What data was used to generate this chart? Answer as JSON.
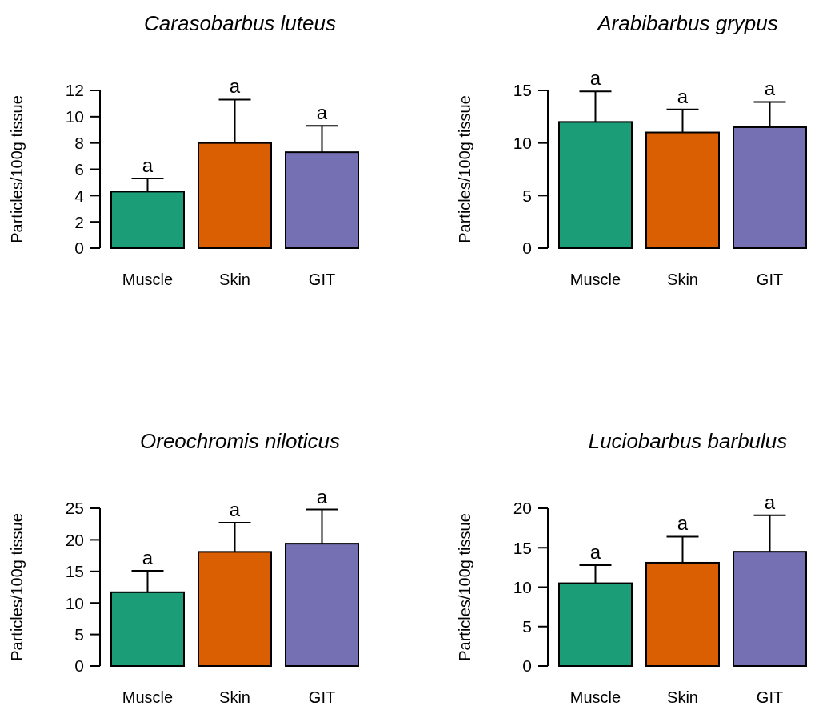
{
  "chart_data": [
    {
      "type": "bar",
      "title": "Carasobarbus luteus",
      "ylabel": "Particles/100g tissue",
      "categories": [
        "Muscle",
        "Skin",
        "GIT"
      ],
      "values": [
        4.3,
        8.0,
        7.3
      ],
      "colors": [
        "#1b9e77",
        "#d95f02",
        "#7570b3"
      ],
      "errors": [
        [
          4.3,
          5.3
        ],
        [
          8.0,
          11.3
        ],
        [
          7.3,
          9.3
        ]
      ],
      "ylim": [
        0,
        12
      ],
      "yticks": [
        0,
        2,
        4,
        6,
        8,
        10,
        12
      ],
      "annotations": [
        {
          "text": "a",
          "x": "Muscle",
          "y": 5.3
        },
        {
          "text": "a",
          "x": "Skin",
          "y": 11.3
        },
        {
          "text": "a",
          "x": "GIT",
          "y": 9.3
        }
      ]
    },
    {
      "type": "bar",
      "title": "Arabibarbus grypus",
      "ylabel": "Particles/100g tissue",
      "categories": [
        "Muscle",
        "Skin",
        "GIT"
      ],
      "values": [
        12.0,
        11.0,
        11.5
      ],
      "colors": [
        "#1b9e77",
        "#d95f02",
        "#7570b3"
      ],
      "errors": [
        [
          12.0,
          14.9
        ],
        [
          11.0,
          13.2
        ],
        [
          11.5,
          13.9
        ]
      ],
      "ylim": [
        0,
        15
      ],
      "yticks": [
        0,
        5,
        10,
        15
      ],
      "annotations": [
        {
          "text": "a",
          "x": "Muscle",
          "y": 14.9
        },
        {
          "text": "a",
          "x": "Skin",
          "y": 13.2
        },
        {
          "text": "a",
          "x": "GIT",
          "y": 13.9
        }
      ]
    },
    {
      "type": "bar",
      "title": "Oreochromis niloticus",
      "ylabel": "Particles/100g tissue",
      "categories": [
        "Muscle",
        "Skin",
        "GIT"
      ],
      "values": [
        11.7,
        18.1,
        19.4
      ],
      "colors": [
        "#1b9e77",
        "#d95f02",
        "#7570b3"
      ],
      "errors": [
        [
          11.7,
          15.1
        ],
        [
          18.1,
          22.7
        ],
        [
          19.4,
          24.8
        ]
      ],
      "ylim": [
        0,
        25
      ],
      "yticks": [
        0,
        5,
        10,
        15,
        20,
        25
      ],
      "annotations": [
        {
          "text": "a",
          "x": "Muscle",
          "y": 15.1
        },
        {
          "text": "a",
          "x": "Skin",
          "y": 22.7
        },
        {
          "text": "a",
          "x": "GIT",
          "y": 24.8
        }
      ]
    },
    {
      "type": "bar",
      "title": "Luciobarbus barbulus",
      "ylabel": "Particles/100g tissue",
      "categories": [
        "Muscle",
        "Skin",
        "GIT"
      ],
      "values": [
        10.5,
        13.1,
        14.5
      ],
      "colors": [
        "#1b9e77",
        "#d95f02",
        "#7570b3"
      ],
      "errors": [
        [
          10.5,
          12.8
        ],
        [
          13.1,
          16.4
        ],
        [
          14.5,
          19.1
        ]
      ],
      "ylim": [
        0,
        20
      ],
      "yticks": [
        0,
        5,
        10,
        15,
        20
      ],
      "annotations": [
        {
          "text": "a",
          "x": "Muscle",
          "y": 12.8
        },
        {
          "text": "a",
          "x": "Skin",
          "y": 16.4
        },
        {
          "text": "a",
          "x": "GIT",
          "y": 19.1
        }
      ]
    }
  ]
}
